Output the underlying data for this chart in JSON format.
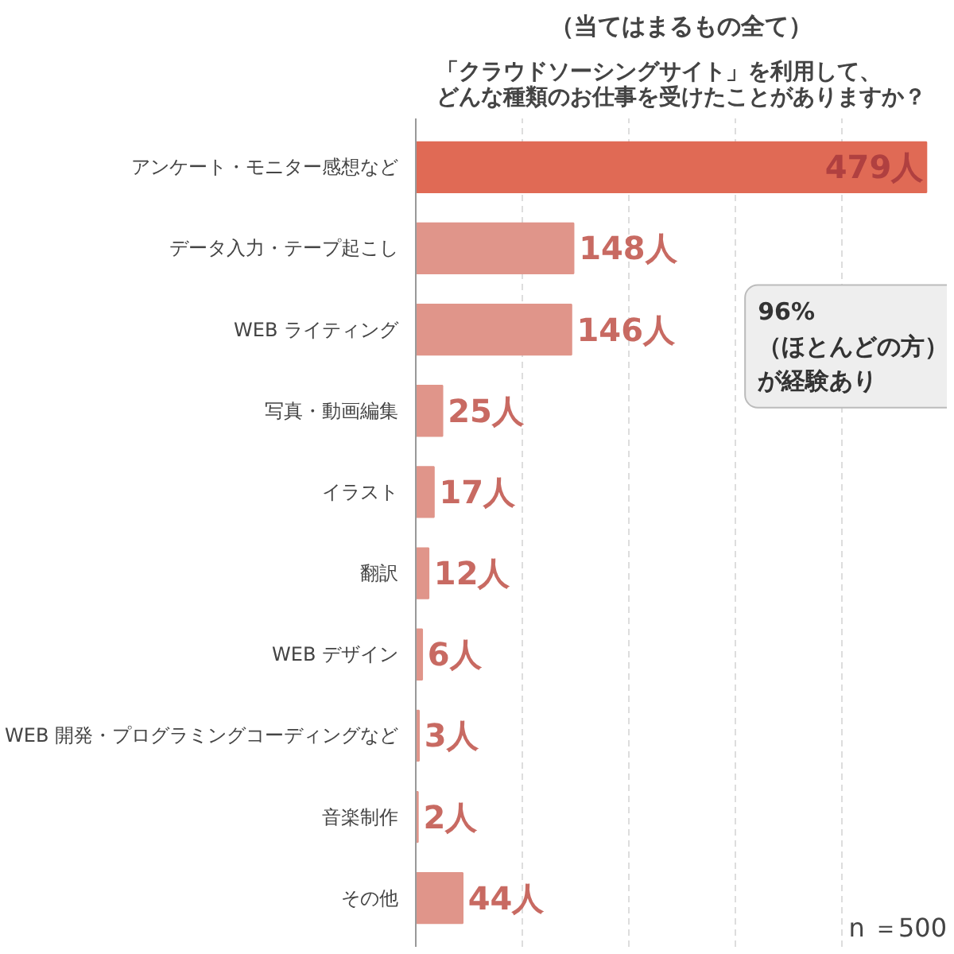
{
  "chart_data": {
    "type": "bar",
    "orientation": "horizontal",
    "title": "「クラウドソーシングサイト」を利用して、どんな種類のお仕事を受けたことがありますか？",
    "subtitle": "（当てはまるもの全て）",
    "categories": [
      "アンケート・モニター感想など",
      "データ入力・テープ起こし",
      "WEB ライティング",
      "写真・動画編集",
      "イラスト",
      "翻訳",
      "WEB デザイン",
      "WEB 開発・プログラミングコーディングなど",
      "音楽制作",
      "その他"
    ],
    "values": [
      479,
      148,
      146,
      25,
      17,
      12,
      6,
      3,
      2,
      44
    ],
    "colors": [
      "#e06a55",
      "#e0958a",
      "#e0958a",
      "#e0958a",
      "#e0958a",
      "#e0958a",
      "#e0958a",
      "#e0958a",
      "#e0958a",
      "#e0958a"
    ],
    "value_labels": [
      "479人",
      "148人",
      "146人",
      "25人",
      "17人",
      "12人",
      "6人",
      "3人",
      "2人",
      "44人"
    ],
    "grid": "x",
    "tick_labels": "y",
    "annotations": [
      "96%（ほとんどの方）が経験あり",
      "n ＝500"
    ]
  }
}
